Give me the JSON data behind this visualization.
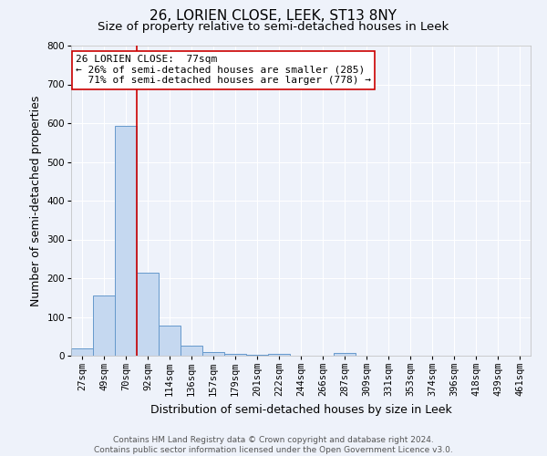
{
  "title": "26, LORIEN CLOSE, LEEK, ST13 8NY",
  "subtitle": "Size of property relative to semi-detached houses in Leek",
  "xlabel": "Distribution of semi-detached houses by size in Leek",
  "ylabel": "Number of semi-detached properties",
  "categories": [
    "27sqm",
    "49sqm",
    "70sqm",
    "92sqm",
    "114sqm",
    "136sqm",
    "157sqm",
    "179sqm",
    "201sqm",
    "222sqm",
    "244sqm",
    "266sqm",
    "287sqm",
    "309sqm",
    "331sqm",
    "353sqm",
    "374sqm",
    "396sqm",
    "418sqm",
    "439sqm",
    "461sqm"
  ],
  "bar_values": [
    20,
    155,
    593,
    215,
    78,
    25,
    10,
    5,
    3,
    5,
    1,
    0,
    7,
    0,
    0,
    0,
    0,
    0,
    0,
    0,
    0
  ],
  "bar_color": "#c5d8f0",
  "bar_edge_color": "#6699cc",
  "ylim": [
    0,
    800
  ],
  "yticks": [
    0,
    100,
    200,
    300,
    400,
    500,
    600,
    700,
    800
  ],
  "vline_color": "#cc0000",
  "annotation_line1": "26 LORIEN CLOSE:  77sqm",
  "annotation_line2": "← 26% of semi-detached houses are smaller (285)",
  "annotation_line3": "  71% of semi-detached houses are larger (778) →",
  "footer_line1": "Contains HM Land Registry data © Crown copyright and database right 2024.",
  "footer_line2": "Contains public sector information licensed under the Open Government Licence v3.0.",
  "background_color": "#eef2fa",
  "grid_color": "#ffffff",
  "title_fontsize": 11,
  "subtitle_fontsize": 9.5,
  "axis_label_fontsize": 9,
  "tick_fontsize": 7.5,
  "annotation_fontsize": 8,
  "footer_fontsize": 6.5,
  "vline_x_index": 2.5
}
